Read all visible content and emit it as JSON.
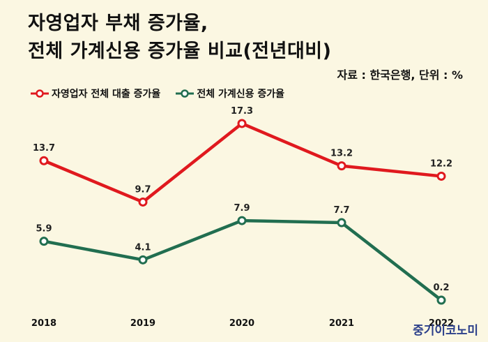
{
  "chart_data": {
    "type": "line",
    "title": "자영업자 부채 증가율,\n전체 가계신용 증가율 비교(전년대비)",
    "source": "자료 : 한국은행, 단위 : %",
    "categories": [
      "2018",
      "2019",
      "2020",
      "2021",
      "2022"
    ],
    "series": [
      {
        "name": "자영업자 전체 대출 증가율",
        "color": "#e0191e",
        "values": [
          13.7,
          9.7,
          17.3,
          13.2,
          12.2
        ],
        "labels": [
          "13.7",
          "9.7",
          "17.3",
          "13.2",
          "12.2"
        ]
      },
      {
        "name": "전체 가계신용 증가율",
        "color": "#216e50",
        "values": [
          5.9,
          4.1,
          7.9,
          7.7,
          0.2
        ],
        "labels": [
          "5.9",
          "4.1",
          "7.9",
          "7.7",
          "0.2"
        ]
      }
    ],
    "legend_position": "top-left",
    "grid": false
  },
  "brand": "중기이코노미"
}
